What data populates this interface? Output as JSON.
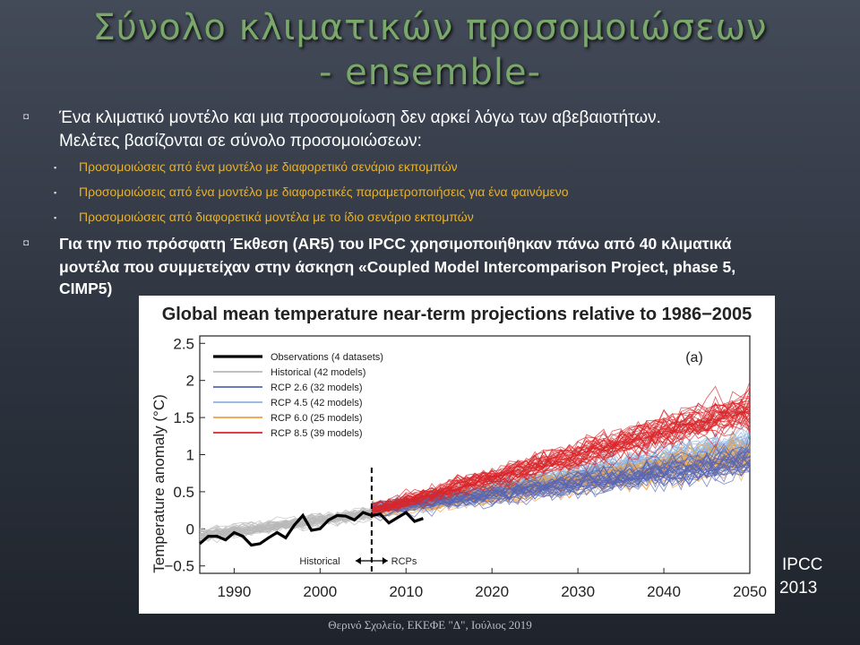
{
  "slide": {
    "title_line1": "Σύνολο κλιματικών προσομοιώσεων",
    "title_line2": "- ensemble-",
    "bullet_marker": "◘",
    "sub_marker": "▪",
    "bullet1": {
      "line1": "Ένα κλιματικό μοντέλο και μια προσομοίωση δεν αρκεί λόγω των αβεβαιοτήτων.",
      "line2": "Μελέτες βασίζονται σε σύνολο προσομοιώσεων:"
    },
    "sub_bullets": [
      "Προσομοιώσεις από ένα μοντέλο με διαφορετικό σενάριο εκπομπών",
      "Προσομοιώσεις από ένα μοντέλο με διαφορετικές παραμετροποιήσεις για ένα φαινόμενο",
      "Προσομοιώσεις από διαφορετικά μοντέλα με το ίδιο σενάριο εκπομπών"
    ],
    "bullet2": {
      "line1": "Για την πιο πρόσφατη Έκθεση (AR5) του IPCC χρησιμοποιήθηκαν πάνω από 40 κλιματικά",
      "line2": "μοντέλα που συμμετείχαν στην άσκηση «Coupled Model Intercomparison Project, phase 5,",
      "line3": "CIMP5)"
    },
    "citation_line1": "IPCC",
    "citation_line2": "2013",
    "footer": "Θερινό Σχολείο, ΕΚΕΦΕ \"Δ\", Ιούλιος 2019",
    "sub_color": "#e6b12e"
  },
  "chart_data": {
    "type": "line",
    "title": "Global mean temperature near-term projections relative to 1986−2005",
    "ylabel": "Temperature anomaly (°C)",
    "xlabel": "",
    "panel_label": "(a)",
    "xlim": [
      1986,
      2050
    ],
    "ylim": [
      -0.6,
      2.6
    ],
    "x_ticks": [
      1990,
      2000,
      2010,
      2020,
      2030,
      2040,
      2050
    ],
    "y_ticks": [
      -0.5,
      0,
      0.5,
      1,
      1.5,
      2,
      2.5
    ],
    "y_tick_labels": [
      "−0.5",
      "0",
      "0.5",
      "1",
      "1.5",
      "2",
      "2.5"
    ],
    "divider_x": 2006,
    "annotation_left": "Historical",
    "annotation_right": "RCPs",
    "legend_placement": "top-left",
    "legend": [
      {
        "label": "Observations (4 datasets)",
        "color": "#000000"
      },
      {
        "label": "Historical (42 models)",
        "color": "#b8b8b8"
      },
      {
        "label": "RCP 2.6 (32 models)",
        "color": "#5565b5"
      },
      {
        "label": "RCP 4.5 (42 models)",
        "color": "#8fb1dd"
      },
      {
        "label": "RCP 6.0 (25 models)",
        "color": "#f1a040"
      },
      {
        "label": "RCP 8.5 (39 models)",
        "color": "#d8262b"
      }
    ],
    "observations": {
      "x": [
        1986,
        1987,
        1988,
        1989,
        1990,
        1991,
        1992,
        1993,
        1994,
        1995,
        1996,
        1997,
        1998,
        1999,
        2000,
        2001,
        2002,
        2003,
        2004,
        2005,
        2006,
        2007,
        2008,
        2009,
        2010,
        2011,
        2012
      ],
      "y": [
        -0.2,
        -0.1,
        -0.1,
        -0.15,
        -0.05,
        -0.1,
        -0.22,
        -0.2,
        -0.12,
        -0.05,
        -0.12,
        0.05,
        0.18,
        -0.02,
        0.0,
        0.12,
        0.18,
        0.17,
        0.12,
        0.22,
        0.18,
        0.2,
        0.08,
        0.15,
        0.22,
        0.1,
        0.14
      ]
    },
    "ensembles": [
      {
        "name": "Historical (42 models)",
        "count": 42,
        "x_range": [
          1986,
          2006
        ],
        "start_mean": -0.1,
        "end_mean": 0.2
      },
      {
        "name": "RCP 2.6 (32 models)",
        "count": 32,
        "x_range": [
          2006,
          2050
        ],
        "start_mean": 0.25,
        "end_mean": 0.9
      },
      {
        "name": "RCP 4.5 (42 models)",
        "count": 42,
        "x_range": [
          2006,
          2050
        ],
        "start_mean": 0.25,
        "end_mean": 1.1
      },
      {
        "name": "RCP 6.0 (25 models)",
        "count": 25,
        "x_range": [
          2006,
          2050
        ],
        "start_mean": 0.25,
        "end_mean": 1.0
      },
      {
        "name": "RCP 8.5 (39 models)",
        "count": 39,
        "x_range": [
          2006,
          2050
        ],
        "start_mean": 0.25,
        "end_mean": 1.6
      }
    ]
  }
}
